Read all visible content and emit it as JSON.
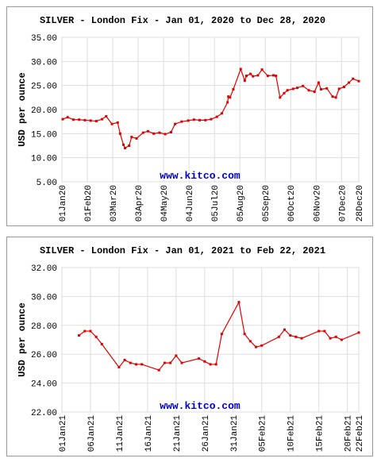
{
  "chart_data": [
    {
      "type": "line",
      "title": "SILVER - London Fix - Jan 01, 2020 to Dec 28, 2020",
      "y_label": "USD per ounce",
      "watermark": "www.kitco.com",
      "xlim": [
        "2020-01-01",
        "2020-12-28"
      ],
      "ylim": [
        5,
        35
      ],
      "grid": true,
      "yticks": [
        {
          "value": 5,
          "label": "5.00"
        },
        {
          "value": 10,
          "label": "10.00"
        },
        {
          "value": 15,
          "label": "15.00"
        },
        {
          "value": 20,
          "label": "20.00"
        },
        {
          "value": 25,
          "label": "25.00"
        },
        {
          "value": 30,
          "label": "30.00"
        },
        {
          "value": 35,
          "label": "35.00"
        }
      ],
      "xticks": [
        {
          "value": "2020-01-01",
          "label": "01Jan20"
        },
        {
          "value": "2020-02-01",
          "label": "01Feb20"
        },
        {
          "value": "2020-03-03",
          "label": "03Mar20"
        },
        {
          "value": "2020-04-03",
          "label": "03Apr20"
        },
        {
          "value": "2020-05-04",
          "label": "04May20"
        },
        {
          "value": "2020-06-04",
          "label": "04Jun20"
        },
        {
          "value": "2020-07-05",
          "label": "05Jul20"
        },
        {
          "value": "2020-08-05",
          "label": "05Aug20"
        },
        {
          "value": "2020-09-05",
          "label": "05Sep20"
        },
        {
          "value": "2020-10-06",
          "label": "06Oct20"
        },
        {
          "value": "2020-11-06",
          "label": "06Nov20"
        },
        {
          "value": "2020-12-07",
          "label": "07Dec20"
        },
        {
          "value": "2020-12-28",
          "label": "28Dec20"
        }
      ],
      "x": [
        "2020-01-02",
        "2020-01-08",
        "2020-01-15",
        "2020-01-22",
        "2020-01-29",
        "2020-02-05",
        "2020-02-12",
        "2020-02-19",
        "2020-02-24",
        "2020-03-02",
        "2020-03-09",
        "2020-03-12",
        "2020-03-16",
        "2020-03-18",
        "2020-03-23",
        "2020-03-26",
        "2020-04-01",
        "2020-04-09",
        "2020-04-15",
        "2020-04-22",
        "2020-04-29",
        "2020-05-06",
        "2020-05-13",
        "2020-05-18",
        "2020-05-26",
        "2020-06-03",
        "2020-06-10",
        "2020-06-17",
        "2020-06-24",
        "2020-07-01",
        "2020-07-08",
        "2020-07-14",
        "2020-07-21",
        "2020-07-22",
        "2020-07-24",
        "2020-07-28",
        "2020-08-06",
        "2020-08-11",
        "2020-08-13",
        "2020-08-18",
        "2020-08-21",
        "2020-08-27",
        "2020-09-01",
        "2020-09-08",
        "2020-09-15",
        "2020-09-18",
        "2020-09-23",
        "2020-09-28",
        "2020-10-02",
        "2020-10-09",
        "2020-10-14",
        "2020-10-21",
        "2020-10-28",
        "2020-11-04",
        "2020-11-09",
        "2020-11-12",
        "2020-11-19",
        "2020-11-26",
        "2020-11-30",
        "2020-12-04",
        "2020-12-10",
        "2020-12-16",
        "2020-12-21",
        "2020-12-28"
      ],
      "series": [
        {
          "color": "#e00000",
          "values": [
            18.0,
            18.4,
            17.9,
            17.9,
            17.8,
            17.7,
            17.6,
            18.0,
            18.6,
            17.0,
            17.3,
            15.0,
            12.7,
            12.0,
            12.5,
            14.3,
            14.0,
            15.2,
            15.5,
            15.0,
            15.2,
            14.9,
            15.3,
            17.0,
            17.5,
            17.7,
            17.9,
            17.8,
            17.8,
            18.0,
            18.5,
            19.2,
            21.5,
            22.7,
            22.5,
            24.2,
            28.4,
            26.0,
            27.0,
            27.4,
            26.9,
            27.1,
            28.3,
            27.0,
            27.1,
            27.0,
            22.5,
            23.4,
            24.0,
            24.3,
            24.5,
            24.9,
            24.0,
            23.7,
            25.6,
            24.2,
            24.4,
            22.7,
            22.5,
            24.3,
            24.7,
            25.6,
            26.4,
            25.9
          ]
        }
      ]
    },
    {
      "type": "line",
      "title": "SILVER - London Fix - Jan 01, 2021 to Feb 22, 2021",
      "y_label": "USD per ounce",
      "watermark": "www.kitco.com",
      "xlim": [
        "2021-01-01",
        "2021-02-22"
      ],
      "ylim": [
        22,
        32
      ],
      "grid": true,
      "yticks": [
        {
          "value": 22,
          "label": "22.00"
        },
        {
          "value": 24,
          "label": "24.00"
        },
        {
          "value": 26,
          "label": "26.00"
        },
        {
          "value": 28,
          "label": "28.00"
        },
        {
          "value": 30,
          "label": "30.00"
        },
        {
          "value": 32,
          "label": "32.00"
        }
      ],
      "xticks": [
        {
          "value": "2021-01-01",
          "label": "01Jan21"
        },
        {
          "value": "2021-01-06",
          "label": "06Jan21"
        },
        {
          "value": "2021-01-11",
          "label": "11Jan21"
        },
        {
          "value": "2021-01-16",
          "label": "16Jan21"
        },
        {
          "value": "2021-01-21",
          "label": "21Jan21"
        },
        {
          "value": "2021-01-26",
          "label": "26Jan21"
        },
        {
          "value": "2021-01-31",
          "label": "31Jan21"
        },
        {
          "value": "2021-02-05",
          "label": "05Feb21"
        },
        {
          "value": "2021-02-10",
          "label": "10Feb21"
        },
        {
          "value": "2021-02-15",
          "label": "15Feb21"
        },
        {
          "value": "2021-02-20",
          "label": "20Feb21"
        },
        {
          "value": "2021-02-22",
          "label": "22Feb21"
        }
      ],
      "x": [
        "2021-01-04",
        "2021-01-05",
        "2021-01-06",
        "2021-01-07",
        "2021-01-08",
        "2021-01-11",
        "2021-01-12",
        "2021-01-13",
        "2021-01-14",
        "2021-01-15",
        "2021-01-18",
        "2021-01-19",
        "2021-01-20",
        "2021-01-21",
        "2021-01-22",
        "2021-01-25",
        "2021-01-26",
        "2021-01-27",
        "2021-01-28",
        "2021-01-29",
        "2021-02-01",
        "2021-02-02",
        "2021-02-03",
        "2021-02-04",
        "2021-02-05",
        "2021-02-08",
        "2021-02-09",
        "2021-02-10",
        "2021-02-11",
        "2021-02-12",
        "2021-02-15",
        "2021-02-16",
        "2021-02-17",
        "2021-02-18",
        "2021-02-19",
        "2021-02-22"
      ],
      "series": [
        {
          "color": "#e00000",
          "values": [
            27.3,
            27.6,
            27.6,
            27.2,
            26.7,
            25.1,
            25.6,
            25.4,
            25.3,
            25.3,
            24.9,
            25.4,
            25.4,
            25.9,
            25.4,
            25.7,
            25.5,
            25.3,
            25.3,
            27.4,
            29.6,
            27.4,
            26.9,
            26.5,
            26.6,
            27.2,
            27.7,
            27.3,
            27.2,
            27.1,
            27.6,
            27.6,
            27.1,
            27.2,
            27.0,
            27.5
          ]
        }
      ]
    }
  ]
}
